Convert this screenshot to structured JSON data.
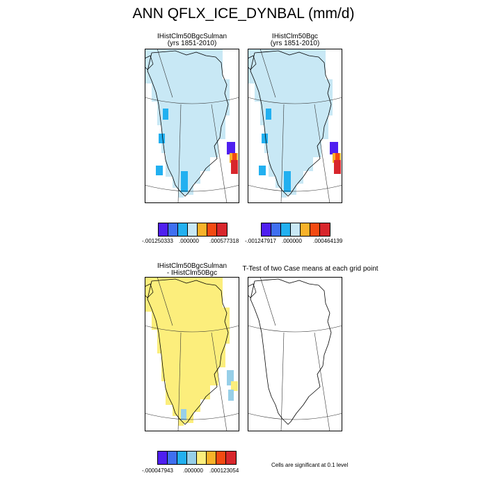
{
  "title": "ANN QFLX_ICE_DYNBAL (mm/d)",
  "panels": {
    "top_left": {
      "title_line1": "IHistClm50BgcSulman",
      "title_line2": "(yrs 1851-2010)"
    },
    "top_right": {
      "title_line1": "IHistClm50Bgc",
      "title_line2": "(yrs 1851-2010)"
    },
    "bottom_left": {
      "title_line1": "IHistClm50BgcSulman",
      "title_line2": "- IHistClm50Bgc"
    },
    "bottom_right": {
      "title_line1": "T-Test of two Case means at each grid point"
    }
  },
  "colorbars": {
    "top_left": {
      "colors": [
        "#4f1ff0",
        "#3f6ff0",
        "#22b0f0",
        "#c8e8f5",
        "#f8b22a",
        "#f34a12",
        "#d8262c"
      ],
      "min_label": "-.001250333",
      "mid_label": ".000000",
      "max_label": ".000577318"
    },
    "top_right": {
      "colors": [
        "#4f1ff0",
        "#3f6ff0",
        "#22b0f0",
        "#c8e8f5",
        "#f8b22a",
        "#f34a12",
        "#d8262c"
      ],
      "min_label": "-.001247917",
      "mid_label": ".000000",
      "max_label": ".000464139"
    },
    "bottom_left": {
      "colors": [
        "#4f1ff0",
        "#3f6ff0",
        "#22b0f0",
        "#97cfe8",
        "#fcee7c",
        "#f8b22a",
        "#f34a12",
        "#d8262c"
      ],
      "min_label": "-.000047943",
      "mid_label": ".000000",
      "max_label": ".000123054"
    }
  },
  "significance_note": "Cells are significant at 0.1 level",
  "field_colors": {
    "near_zero": "#c8e8f5",
    "positive_small": "#fcee7c",
    "negative_small": "#97cfe8",
    "negative_mid": "#22b0f0",
    "negative_large": "#4f1ff0",
    "positive_large": "#d8262c",
    "positive_mid": "#f34a12",
    "positive_low": "#f8b22a"
  }
}
